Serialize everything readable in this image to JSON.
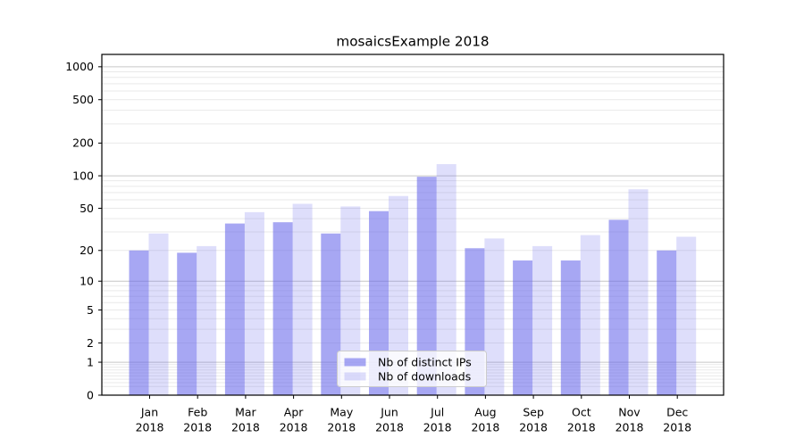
{
  "chart_data": {
    "type": "bar",
    "title": "mosaicsExample 2018",
    "categories": [
      "Jan",
      "Feb",
      "Mar",
      "Apr",
      "May",
      "Jun",
      "Jul",
      "Aug",
      "Sep",
      "Oct",
      "Nov",
      "Dec"
    ],
    "categories_year": "2018",
    "series": [
      {
        "name": "Nb of distinct IPs",
        "color": "rgba(104,104,235,0.58)",
        "values": [
          20,
          19,
          36,
          37,
          29,
          47,
          98,
          21,
          16,
          16,
          39,
          20
        ]
      },
      {
        "name": "Nb of downloads",
        "color": "rgba(104,104,235,0.22)",
        "values": [
          29,
          22,
          46,
          55,
          52,
          65,
          128,
          26,
          22,
          28,
          75,
          27
        ]
      }
    ],
    "yscale": "log1p",
    "yticks": [
      0,
      1,
      2,
      5,
      10,
      20,
      50,
      100,
      200,
      500,
      1000
    ],
    "ylim": [
      0,
      1300
    ],
    "xlabel": "",
    "ylabel": "",
    "grid": true,
    "legend_position": "lower center"
  },
  "colors": {
    "background": "#ffffff",
    "bar_base": "#6868eb",
    "grid_major": "#c6c6c6",
    "grid_minor": "#e9e9e9",
    "spine": "#000000",
    "text": "#000000",
    "legend_border": "#cccccc",
    "legend_background": "rgba(255,255,255,0.8)"
  }
}
